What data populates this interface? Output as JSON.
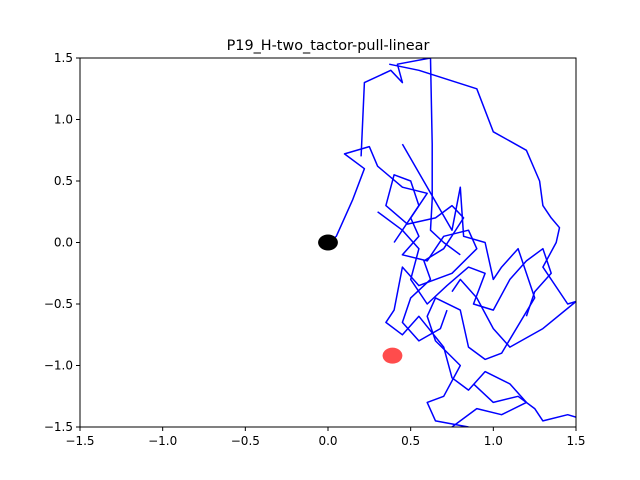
{
  "chart_data": {
    "type": "line",
    "title": "P19_H-two_tactor-pull-linear",
    "xlabel": "",
    "ylabel": "",
    "xlim": [
      -1.5,
      1.5
    ],
    "ylim": [
      -1.5,
      1.5
    ],
    "x_ticks": [
      -1.5,
      -1.0,
      -0.5,
      0.0,
      0.5,
      1.0,
      1.5
    ],
    "x_tick_labels": [
      "−1.5",
      "−1.0",
      "−0.5",
      "0.0",
      "0.5",
      "1.0",
      "1.5"
    ],
    "y_ticks": [
      1.5,
      1.0,
      0.5,
      0.0,
      -0.5,
      -1.0,
      -1.5
    ],
    "y_tick_labels": [
      "1.5",
      "1.0",
      "0.5",
      "0.0",
      "−0.5",
      "−1.0",
      "−1.5"
    ],
    "grid": false,
    "colors": {
      "trajectory": "#0000ff",
      "start_marker": "#000000",
      "target_marker": "#ff0000"
    },
    "series": [
      {
        "color": "#0000ff",
        "points": [
          [
            0.0,
            0.0
          ],
          [
            0.05,
            0.05
          ],
          [
            0.15,
            0.35
          ],
          [
            0.22,
            0.6
          ],
          [
            0.1,
            0.72
          ],
          [
            0.25,
            0.78
          ],
          [
            0.3,
            0.62
          ],
          [
            0.45,
            0.45
          ],
          [
            0.6,
            0.4
          ],
          [
            0.5,
            0.2
          ],
          [
            0.55,
            0.05
          ],
          [
            0.45,
            -0.1
          ],
          [
            0.6,
            -0.15
          ],
          [
            0.7,
            0.05
          ],
          [
            0.85,
            0.1
          ],
          [
            0.9,
            -0.05
          ],
          [
            0.75,
            -0.25
          ],
          [
            0.55,
            -0.35
          ],
          [
            0.45,
            -0.2
          ],
          [
            0.4,
            -0.55
          ],
          [
            0.35,
            -0.65
          ],
          [
            0.45,
            -0.75
          ],
          [
            0.55,
            -0.6
          ],
          [
            0.7,
            -0.85
          ],
          [
            0.75,
            -1.1
          ],
          [
            0.85,
            -1.2
          ],
          [
            0.95,
            -1.05
          ],
          [
            1.1,
            -1.15
          ],
          [
            1.2,
            -1.3
          ],
          [
            1.05,
            -1.4
          ],
          [
            0.9,
            -1.35
          ],
          [
            0.75,
            -1.5
          ]
        ]
      },
      {
        "color": "#0000ff",
        "points": [
          [
            0.2,
            0.7
          ],
          [
            0.22,
            1.3
          ],
          [
            0.38,
            1.4
          ],
          [
            0.45,
            1.3
          ],
          [
            0.42,
            1.45
          ],
          [
            0.62,
            1.5
          ],
          [
            0.63,
            0.8
          ],
          [
            0.63,
            0.35
          ],
          [
            0.62,
            0.1
          ],
          [
            0.7,
            0.0
          ],
          [
            0.8,
            -0.1
          ]
        ]
      },
      {
        "color": "#0000ff",
        "points": [
          [
            0.37,
            1.45
          ],
          [
            0.55,
            1.4
          ],
          [
            0.9,
            1.25
          ],
          [
            1.0,
            0.9
          ],
          [
            1.2,
            0.75
          ],
          [
            1.28,
            0.5
          ],
          [
            1.3,
            0.3
          ],
          [
            1.35,
            0.2
          ],
          [
            1.4,
            0.12
          ],
          [
            1.38,
            0.0
          ],
          [
            1.3,
            -0.2
          ],
          [
            1.45,
            -0.5
          ],
          [
            1.5,
            -0.48
          ],
          [
            1.3,
            -0.7
          ],
          [
            1.1,
            -0.85
          ],
          [
            1.0,
            -0.7
          ],
          [
            0.9,
            -0.45
          ],
          [
            0.8,
            -0.3
          ],
          [
            0.75,
            -0.4
          ]
        ]
      },
      {
        "color": "#0000ff",
        "points": [
          [
            0.45,
            0.8
          ],
          [
            0.75,
            0.1
          ],
          [
            0.8,
            0.45
          ],
          [
            0.82,
            0.05
          ],
          [
            0.95,
            0.0
          ],
          [
            1.0,
            -0.3
          ],
          [
            1.05,
            -0.2
          ],
          [
            1.15,
            -0.05
          ],
          [
            1.25,
            -0.45
          ],
          [
            1.05,
            -0.9
          ],
          [
            0.95,
            -0.95
          ],
          [
            0.85,
            -0.85
          ],
          [
            0.8,
            -0.55
          ],
          [
            0.65,
            -0.45
          ],
          [
            0.6,
            -0.6
          ],
          [
            0.65,
            -0.8
          ],
          [
            0.8,
            -1.0
          ],
          [
            0.7,
            -1.25
          ],
          [
            0.6,
            -1.3
          ],
          [
            0.65,
            -1.45
          ],
          [
            0.85,
            -1.5
          ]
        ]
      },
      {
        "color": "#0000ff",
        "points": [
          [
            0.3,
            0.25
          ],
          [
            0.45,
            0.1
          ],
          [
            0.55,
            -0.05
          ],
          [
            0.5,
            -0.3
          ],
          [
            0.6,
            -0.5
          ],
          [
            0.72,
            -0.35
          ],
          [
            0.85,
            -0.2
          ],
          [
            0.95,
            -0.25
          ],
          [
            0.88,
            -0.5
          ],
          [
            1.0,
            -0.55
          ],
          [
            1.1,
            -0.3
          ],
          [
            1.2,
            -0.15
          ],
          [
            1.3,
            -0.05
          ],
          [
            1.35,
            -0.25
          ],
          [
            1.25,
            -0.4
          ],
          [
            1.2,
            -0.6
          ]
        ]
      },
      {
        "color": "#0000ff",
        "points": [
          [
            0.4,
            0.0
          ],
          [
            0.55,
            0.3
          ],
          [
            0.5,
            0.5
          ],
          [
            0.4,
            0.55
          ],
          [
            0.35,
            0.3
          ],
          [
            0.48,
            0.15
          ],
          [
            0.65,
            0.2
          ],
          [
            0.75,
            0.3
          ],
          [
            0.82,
            0.2
          ],
          [
            0.7,
            -0.05
          ],
          [
            0.58,
            -0.15
          ],
          [
            0.62,
            -0.3
          ],
          [
            0.5,
            -0.45
          ],
          [
            0.45,
            -0.65
          ],
          [
            0.55,
            -0.8
          ],
          [
            0.68,
            -0.7
          ],
          [
            0.72,
            -0.55
          ]
        ]
      },
      {
        "color": "#0000ff",
        "points": [
          [
            0.88,
            -1.15
          ],
          [
            1.0,
            -1.3
          ],
          [
            1.15,
            -1.25
          ],
          [
            1.25,
            -1.35
          ],
          [
            1.3,
            -1.45
          ],
          [
            1.45,
            -1.4
          ],
          [
            1.5,
            -1.42
          ]
        ]
      }
    ],
    "markers": [
      {
        "x": 0.0,
        "y": 0.0,
        "color": "#000000",
        "rx_data": 0.06,
        "ry_data": 0.065
      },
      {
        "x": 0.39,
        "y": -0.92,
        "color": "#ff0000",
        "alpha": 0.7,
        "rx_data": 0.06,
        "ry_data": 0.065
      }
    ]
  }
}
